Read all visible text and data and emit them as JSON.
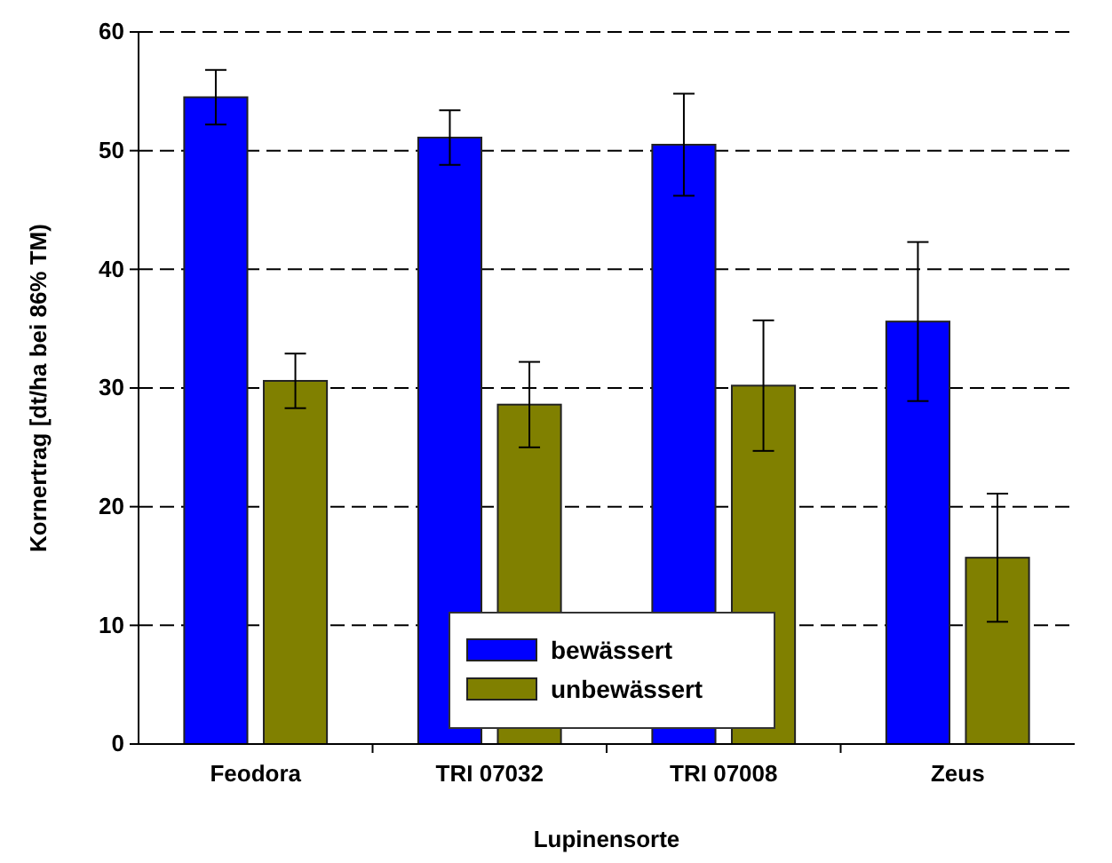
{
  "chart_data": {
    "type": "bar",
    "xlabel": "Lupinensorte",
    "ylabel": "Kornertrag [dt/ha bei 86% TM)",
    "categories": [
      "Feodora",
      "TRI 07032",
      "TRI 07008",
      "Zeus"
    ],
    "series": [
      {
        "name": "bewässert",
        "color": "#0000ff",
        "values": [
          54.5,
          51.1,
          50.5,
          35.6
        ],
        "errors": [
          2.3,
          2.3,
          4.3,
          6.7
        ]
      },
      {
        "name": "unbewässert",
        "color": "#808000",
        "values": [
          30.6,
          28.6,
          30.2,
          15.7
        ],
        "errors": [
          2.3,
          3.6,
          5.5,
          5.4
        ]
      }
    ],
    "ylim": [
      0,
      60
    ],
    "yticks": [
      0,
      10,
      20,
      30,
      40,
      50,
      60
    ],
    "grid": "y",
    "legend": "bottom"
  }
}
